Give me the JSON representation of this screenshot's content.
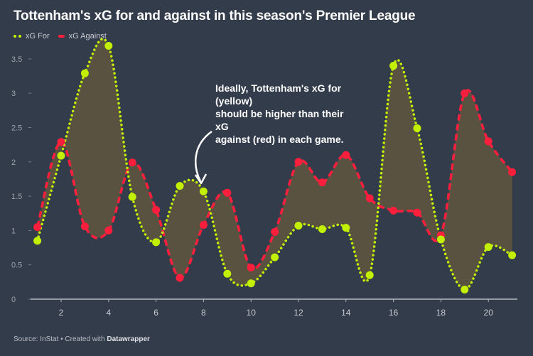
{
  "title": "Tottenham's xG for and against in this season's Premier League",
  "annotation": "Ideally, Tottenham's xG for (yellow)\nshould be higher than their xG against (red) in each game.",
  "annotation_lines": [
    "Ideally, Tottenham's xG for",
    "(yellow)",
    "should be higher than their xG",
    "against (red) in each game."
  ],
  "source": {
    "prefix": "Source: InStat • Created with ",
    "brand": "Datawrapper"
  },
  "colors": {
    "background": "#333c4b",
    "xg_for": "#c2f000",
    "xg_against": "#ff1f3d",
    "fill": "#5c5340"
  },
  "chart_data": {
    "type": "line",
    "title": "Tottenham's xG for and against in this season's Premier League",
    "xlabel": "",
    "ylabel": "",
    "x": [
      1,
      2,
      3,
      4,
      5,
      6,
      7,
      8,
      9,
      10,
      11,
      12,
      13,
      14,
      15,
      16,
      17,
      18,
      19,
      20,
      21
    ],
    "xticks": [
      "2",
      "4",
      "6",
      "8",
      "10",
      "12",
      "14",
      "16",
      "18",
      "20"
    ],
    "yticks": [
      "0",
      "0.5",
      "1",
      "1.5",
      "2",
      "2.5",
      "3",
      "3.5"
    ],
    "xlim": [
      0.7,
      21.2
    ],
    "ylim": [
      0,
      3.7
    ],
    "grid": false,
    "legend": "top-left",
    "series": [
      {
        "name": "xG For",
        "style": "dotted",
        "values": [
          0.85,
          2.09,
          3.29,
          3.69,
          1.49,
          0.83,
          1.65,
          1.57,
          0.37,
          0.23,
          0.61,
          1.07,
          1.02,
          1.04,
          0.35,
          3.4,
          2.49,
          0.87,
          0.14,
          0.76,
          0.64
        ]
      },
      {
        "name": "xG Against",
        "style": "dashed",
        "values": [
          1.05,
          2.29,
          1.06,
          1.0,
          1.99,
          1.3,
          0.31,
          1.08,
          1.55,
          0.46,
          0.98,
          2.0,
          1.7,
          2.1,
          1.47,
          1.29,
          1.26,
          0.93,
          3.0,
          2.3,
          1.85
        ]
      }
    ]
  }
}
